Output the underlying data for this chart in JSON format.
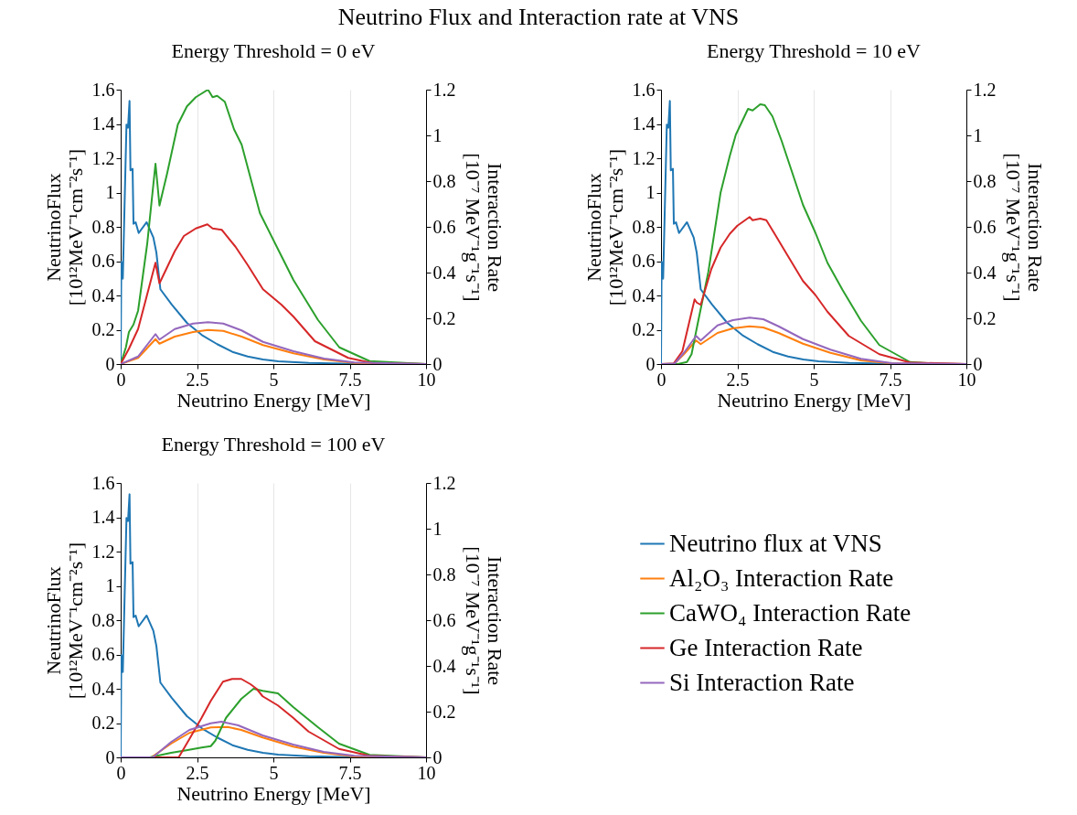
{
  "chart_data": [
    {
      "type": "line",
      "title": "Neutrino Flux and Interaction rate at VNS",
      "subtitle": "Energy Threshold = 0 eV",
      "xlabel": "Neutrino Energy [MeV]",
      "ylabel": "NeutrinoFlux\n[10¹²MeV⁻¹cm⁻²s⁻¹]",
      "y2label": "Interaction Rate\n[10⁻⁷ MeV⁻¹g⁻¹s⁻¹]",
      "xlim": [
        0,
        10
      ],
      "xticks": [
        0,
        2.5,
        5,
        7.5,
        10
      ],
      "ylim": [
        0,
        1.6
      ],
      "yticks": [
        0,
        0.2,
        0.4,
        0.6,
        0.8,
        1,
        1.2,
        1.4,
        1.6
      ],
      "y2lim": [
        0,
        1.2
      ],
      "y2ticks": [
        0,
        0.2,
        0.4,
        0.6,
        0.8,
        1,
        1.2
      ],
      "grid": "x",
      "series": [
        {
          "color": "#1f77b4",
          "x": [
            0,
            0.02,
            0.07,
            0.19,
            0.24,
            0.29,
            0.32,
            0.39,
            0.42,
            0.49,
            0.59,
            0.85,
            1.07,
            1.17,
            1.3,
            1.67,
            2.17,
            2.66,
            3.16,
            3.66,
            4.16,
            4.66,
            5.16,
            6.16,
            7.65,
            10
          ],
          "values": [
            0,
            0.596,
            0.498,
            1.396,
            1.378,
            1.534,
            1.129,
            1.138,
            0.818,
            0.827,
            0.764,
            0.827,
            0.738,
            0.649,
            0.436,
            0.347,
            0.24,
            0.169,
            0.116,
            0.071,
            0.044,
            0.027,
            0.016,
            0.007,
            0.002,
            0
          ]
        },
        {
          "color": "#ff7f0e",
          "axis": "y2",
          "x": [
            0,
            0.57,
            1.14,
            1.27,
            1.77,
            2.37,
            2.86,
            3.36,
            3.96,
            4.66,
            5.66,
            6.66,
            7.65,
            10
          ],
          "values": [
            0,
            0.027,
            0.109,
            0.089,
            0.12,
            0.14,
            0.149,
            0.145,
            0.12,
            0.083,
            0.047,
            0.02,
            0.005,
            0
          ]
        },
        {
          "color": "#2ca02c",
          "axis": "y2",
          "x": [
            0,
            0.17,
            0.27,
            0.42,
            0.57,
            0.87,
            1.14,
            1.27,
            1.52,
            1.87,
            2.17,
            2.46,
            2.86,
            3.01,
            3.16,
            3.41,
            3.71,
            3.96,
            4.56,
            5.16,
            5.66,
            6.46,
            7.16,
            8.15,
            10
          ],
          "values": [
            0,
            0.073,
            0.14,
            0.173,
            0.233,
            0.527,
            0.876,
            0.693,
            0.833,
            1.047,
            1.127,
            1.167,
            1.2,
            1.167,
            1.173,
            1.147,
            1.027,
            0.96,
            0.66,
            0.5,
            0.367,
            0.193,
            0.073,
            0.013,
            0
          ]
        },
        {
          "color": "#d62728",
          "axis": "y2",
          "x": [
            0,
            0.27,
            0.57,
            1.14,
            1.27,
            1.77,
            2.07,
            2.46,
            2.84,
            3.01,
            3.31,
            3.76,
            4.16,
            4.66,
            5.26,
            5.66,
            6.36,
            7.45,
            8.25,
            10
          ],
          "values": [
            0,
            0.067,
            0.153,
            0.443,
            0.353,
            0.493,
            0.56,
            0.593,
            0.611,
            0.593,
            0.587,
            0.513,
            0.433,
            0.327,
            0.26,
            0.207,
            0.1,
            0.027,
            0.004,
            0
          ]
        },
        {
          "color": "#9467bd",
          "axis": "y2",
          "x": [
            0,
            0.57,
            1.14,
            1.27,
            1.77,
            2.37,
            2.86,
            3.36,
            3.96,
            4.66,
            5.66,
            6.66,
            7.65,
            10
          ],
          "values": [
            0,
            0.033,
            0.131,
            0.107,
            0.153,
            0.177,
            0.183,
            0.177,
            0.147,
            0.097,
            0.056,
            0.024,
            0.007,
            0
          ]
        }
      ]
    },
    {
      "type": "line",
      "subtitle": "Energy Threshold = 10 eV",
      "xlabel": "Neutrino Energy [MeV]",
      "ylabel": "NeutrinoFlux\n[10¹²MeV⁻¹cm⁻²s⁻¹]",
      "y2label": "Interaction Rate\n[10⁻⁷ MeV⁻¹g⁻¹s⁻¹]",
      "xlim": [
        0,
        10
      ],
      "xticks": [
        0,
        2.5,
        5,
        7.5,
        10
      ],
      "ylim": [
        0,
        1.6
      ],
      "yticks": [
        0,
        0.2,
        0.4,
        0.6,
        0.8,
        1,
        1.2,
        1.4,
        1.6
      ],
      "y2lim": [
        0,
        1.2
      ],
      "y2ticks": [
        0,
        0.2,
        0.4,
        0.6,
        0.8,
        1,
        1.2
      ],
      "grid": "x",
      "series": [
        {
          "color": "#1f77b4",
          "x": [
            0,
            0.02,
            0.07,
            0.19,
            0.24,
            0.29,
            0.32,
            0.39,
            0.42,
            0.49,
            0.59,
            0.85,
            1.07,
            1.17,
            1.3,
            1.67,
            2.17,
            2.66,
            3.16,
            3.66,
            4.16,
            4.66,
            5.16,
            6.16,
            7.65,
            10
          ],
          "values": [
            0,
            0.596,
            0.498,
            1.396,
            1.378,
            1.534,
            1.129,
            1.138,
            0.818,
            0.827,
            0.764,
            0.827,
            0.738,
            0.649,
            0.436,
            0.347,
            0.24,
            0.169,
            0.116,
            0.071,
            0.044,
            0.027,
            0.016,
            0.007,
            0.002,
            0
          ]
        },
        {
          "color": "#ff7f0e",
          "axis": "y2",
          "x": [
            0,
            0.45,
            0.75,
            1.15,
            1.3,
            1.85,
            2.35,
            2.9,
            3.35,
            3.85,
            4.65,
            5.55,
            6.55,
            7.55,
            10
          ],
          "values": [
            0,
            0.003,
            0.043,
            0.103,
            0.087,
            0.136,
            0.156,
            0.165,
            0.16,
            0.136,
            0.089,
            0.049,
            0.016,
            0.003,
            0
          ]
        },
        {
          "color": "#2ca02c",
          "axis": "y2",
          "x": [
            0,
            0.55,
            0.85,
            1,
            1.2,
            1.55,
            1.95,
            2.25,
            2.45,
            2.85,
            3,
            3.25,
            3.4,
            3.65,
            3.95,
            4.35,
            4.65,
            5.05,
            5.45,
            5.95,
            6.55,
            7.15,
            8.15,
            9.05,
            10
          ],
          "values": [
            0,
            0,
            0.009,
            0.043,
            0.176,
            0.403,
            0.749,
            0.909,
            1.003,
            1.116,
            1.109,
            1.136,
            1.132,
            1.083,
            0.976,
            0.816,
            0.696,
            0.576,
            0.443,
            0.323,
            0.189,
            0.083,
            0.009,
            0.001,
            0
          ]
        },
        {
          "color": "#d62728",
          "axis": "y2",
          "x": [
            0,
            0.4,
            0.7,
            1.1,
            1.17,
            1.3,
            1.65,
            1.95,
            2.25,
            2.5,
            2.9,
            3,
            3.25,
            3.45,
            3.75,
            4.05,
            4.65,
            5.05,
            5.45,
            6.15,
            7.15,
            8.15,
            10
          ],
          "values": [
            0,
            0,
            0.056,
            0.283,
            0.269,
            0.259,
            0.416,
            0.509,
            0.569,
            0.605,
            0.643,
            0.629,
            0.636,
            0.629,
            0.563,
            0.496,
            0.363,
            0.303,
            0.229,
            0.123,
            0.043,
            0.007,
            0
          ]
        },
        {
          "color": "#9467bd",
          "axis": "y2",
          "x": [
            0,
            0.45,
            0.75,
            1.15,
            1.3,
            1.85,
            2.35,
            2.9,
            3.35,
            3.85,
            4.65,
            5.55,
            6.55,
            7.55,
            10
          ],
          "values": [
            0,
            0.003,
            0.049,
            0.123,
            0.103,
            0.169,
            0.192,
            0.203,
            0.196,
            0.165,
            0.109,
            0.063,
            0.023,
            0.004,
            0
          ]
        }
      ]
    },
    {
      "type": "line",
      "subtitle": "Energy Threshold = 100 eV",
      "xlabel": "Neutrino Energy [MeV]",
      "ylabel": "NeutrinoFlux\n[10¹²MeV⁻¹cm⁻²s⁻¹]",
      "y2label": "Interaction Rate\n[10⁻⁷ MeV⁻¹g⁻¹s⁻¹]",
      "xlim": [
        0,
        10
      ],
      "xticks": [
        0,
        2.5,
        5,
        7.5,
        10
      ],
      "ylim": [
        0,
        1.6
      ],
      "yticks": [
        0,
        0.2,
        0.4,
        0.6,
        0.8,
        1,
        1.2,
        1.4,
        1.6
      ],
      "y2lim": [
        0,
        1.2
      ],
      "y2ticks": [
        0,
        0.2,
        0.4,
        0.6,
        0.8,
        1,
        1.2
      ],
      "grid": "x",
      "legend": "right",
      "series": [
        {
          "name": "Neutrino flux at VNS",
          "color": "#1f77b4",
          "x": [
            0,
            0.02,
            0.07,
            0.19,
            0.24,
            0.29,
            0.32,
            0.39,
            0.42,
            0.49,
            0.59,
            0.85,
            1.07,
            1.17,
            1.3,
            1.67,
            2.17,
            2.66,
            3.16,
            3.66,
            4.16,
            4.66,
            5.16,
            6.16,
            7.65,
            10
          ],
          "values": [
            0,
            0.596,
            0.498,
            1.396,
            1.378,
            1.534,
            1.129,
            1.138,
            0.818,
            0.827,
            0.764,
            0.827,
            0.738,
            0.649,
            0.436,
            0.347,
            0.24,
            0.169,
            0.116,
            0.071,
            0.044,
            0.027,
            0.016,
            0.007,
            0.002,
            0
          ]
        },
        {
          "name": "Al₂O₃ Interaction Rate",
          "color": "#ff7f0e",
          "axis": "y2",
          "x": [
            0,
            1,
            1.65,
            2.25,
            2.95,
            3.5,
            3.95,
            4.65,
            5.65,
            6.65,
            7.65,
            10
          ],
          "values": [
            0,
            0,
            0.06,
            0.107,
            0.131,
            0.133,
            0.12,
            0.087,
            0.047,
            0.02,
            0.004,
            0
          ]
        },
        {
          "name": "CaWO₄ Interaction Rate",
          "color": "#2ca02c",
          "axis": "y2",
          "x": [
            0,
            0.95,
            1.65,
            2.15,
            2.65,
            2.95,
            3.1,
            3.45,
            3.95,
            4.35,
            4.65,
            5.15,
            5.65,
            6.45,
            7.15,
            8.15,
            10
          ],
          "values": [
            0,
            0,
            0.02,
            0.031,
            0.043,
            0.049,
            0.073,
            0.173,
            0.256,
            0.3,
            0.291,
            0.28,
            0.22,
            0.133,
            0.06,
            0.011,
            0
          ]
        },
        {
          "name": "Ge Interaction Rate",
          "color": "#d62728",
          "axis": "y2",
          "x": [
            0,
            1.9,
            2.25,
            2.65,
            2.95,
            3.35,
            3.65,
            3.95,
            4.25,
            4.45,
            4.65,
            5.15,
            5.65,
            6.15,
            7.15,
            8.15,
            10
          ],
          "values": [
            0,
            0,
            0.08,
            0.173,
            0.247,
            0.331,
            0.343,
            0.343,
            0.32,
            0.3,
            0.267,
            0.227,
            0.173,
            0.113,
            0.037,
            0.007,
            0
          ]
        },
        {
          "name": "Si Interaction Rate",
          "color": "#9467bd",
          "axis": "y2",
          "x": [
            0,
            1.05,
            1.65,
            2.25,
            2.95,
            3.3,
            3.85,
            4.65,
            5.65,
            6.65,
            7.65,
            10
          ],
          "values": [
            0,
            0,
            0.067,
            0.12,
            0.149,
            0.156,
            0.14,
            0.096,
            0.056,
            0.024,
            0.007,
            0
          ]
        }
      ]
    }
  ]
}
